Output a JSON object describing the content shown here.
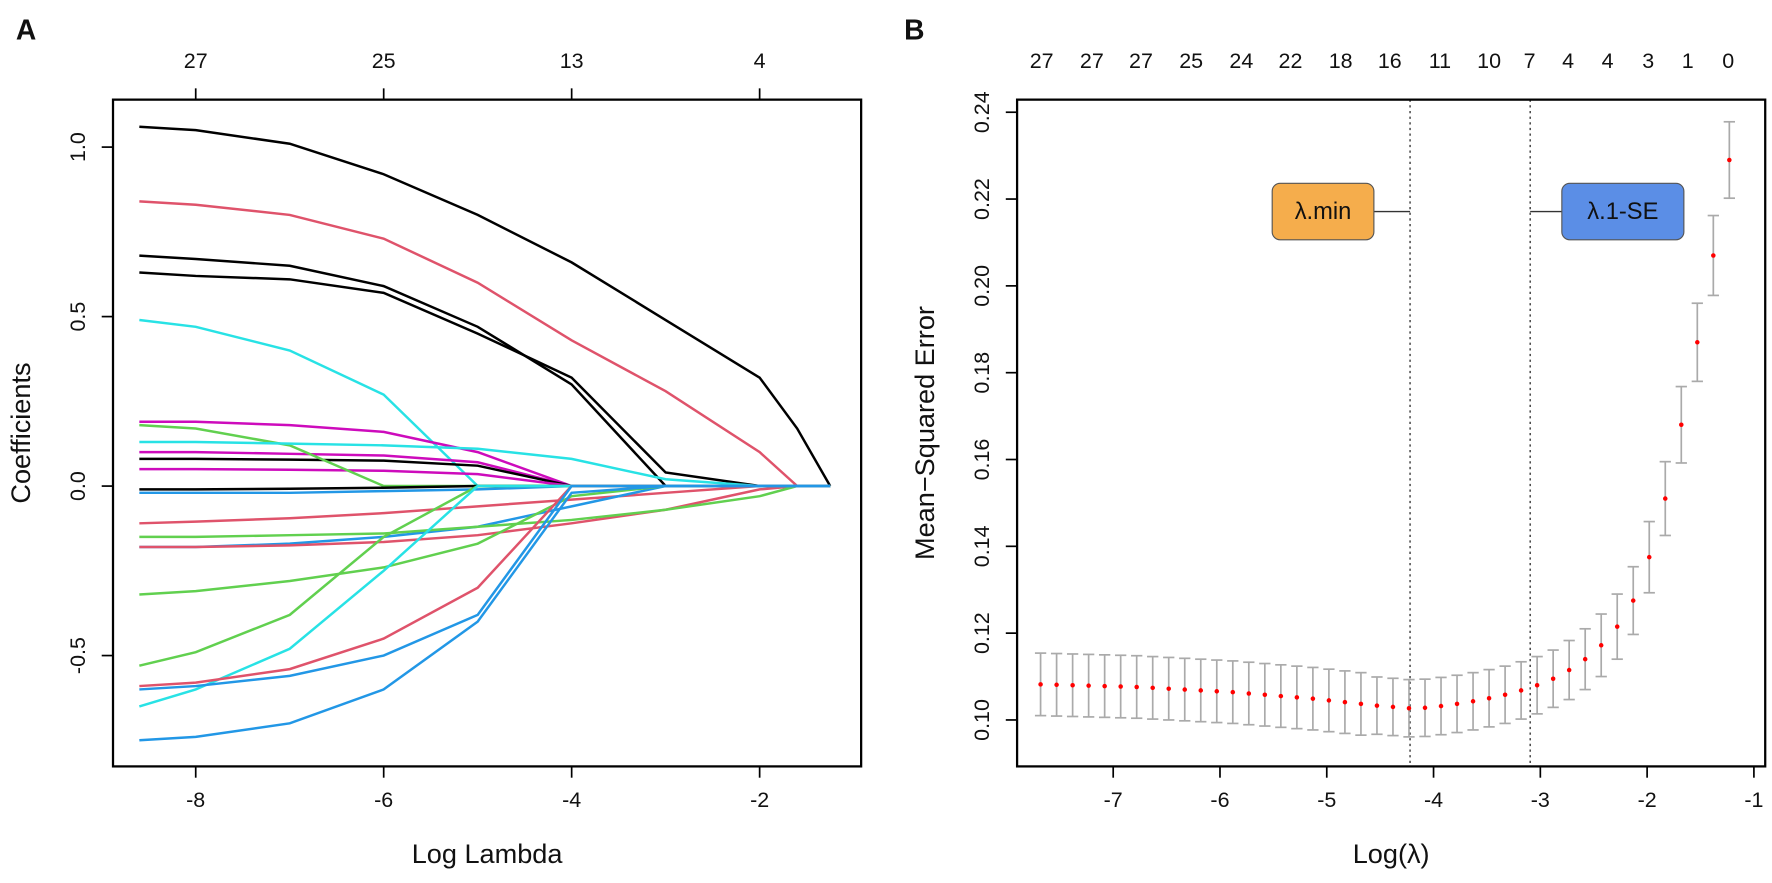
{
  "chart_data": [
    {
      "type": "line",
      "panel_label": "A",
      "xlabel": "Log Lambda",
      "ylabel": "Coefficients",
      "xlim": [
        -8.88,
        -0.92
      ],
      "ylim": [
        -0.827,
        1.14
      ],
      "xticks": [
        -8,
        -6,
        -4,
        -2
      ],
      "yticks": [
        -0.5,
        {
          "value": 0,
          "label": "0.0"
        },
        0.5,
        {
          "value": 1,
          "label": "1.0"
        }
      ],
      "top_xticks": [
        {
          "value": -8,
          "label": "27"
        },
        {
          "value": -6,
          "label": "25"
        },
        {
          "value": -4,
          "label": "13"
        },
        {
          "value": -2,
          "label": "4"
        }
      ],
      "x": [
        -8.6,
        -8,
        -7,
        -6,
        -5,
        -4,
        -3,
        -2,
        -1.6,
        -1.25
      ],
      "series": [
        {
          "color": "#000000",
          "values": [
            1.06,
            1.05,
            1.01,
            0.92,
            0.8,
            0.66,
            0.49,
            0.32,
            0.17,
            0
          ]
        },
        {
          "color": "#DF536B",
          "values": [
            0.84,
            0.83,
            0.8,
            0.73,
            0.6,
            0.43,
            0.28,
            0.1,
            0,
            0
          ]
        },
        {
          "color": "#000000",
          "values": [
            0.68,
            0.67,
            0.65,
            0.59,
            0.47,
            0.3,
            0,
            0,
            0,
            0
          ]
        },
        {
          "color": "#000000",
          "values": [
            0.63,
            0.62,
            0.61,
            0.57,
            0.45,
            0.32,
            0.04,
            0,
            0,
            0
          ]
        },
        {
          "color": "#28E2E5",
          "values": [
            0.49,
            0.47,
            0.4,
            0.27,
            0,
            0,
            0,
            0,
            0,
            0
          ]
        },
        {
          "color": "#CD0BBC",
          "values": [
            0.19,
            0.19,
            0.18,
            0.16,
            0.1,
            0,
            0,
            0,
            0,
            0
          ]
        },
        {
          "color": "#CD0BBC",
          "values": [
            0.1,
            0.1,
            0.095,
            0.09,
            0.07,
            0,
            0,
            0,
            0,
            0
          ]
        },
        {
          "color": "#000000",
          "values": [
            0.08,
            0.08,
            0.078,
            0.075,
            0.06,
            0,
            0,
            0,
            0,
            0
          ]
        },
        {
          "color": "#CD0BBC",
          "values": [
            0.05,
            0.05,
            0.048,
            0.045,
            0.035,
            0,
            0,
            0,
            0,
            0
          ]
        },
        {
          "color": "#61D04F",
          "values": [
            0.18,
            0.17,
            0.12,
            0,
            0,
            0,
            0,
            0,
            0,
            0
          ]
        },
        {
          "color": "#28E2E5",
          "values": [
            0.13,
            0.13,
            0.125,
            0.12,
            0.11,
            0.08,
            0.02,
            0,
            0,
            0
          ]
        },
        {
          "color": "#000000",
          "values": [
            -0.01,
            -0.01,
            -0.008,
            -0.005,
            0,
            0,
            0,
            0,
            0,
            0
          ]
        },
        {
          "color": "#2297E6",
          "values": [
            -0.02,
            -0.02,
            -0.02,
            -0.015,
            -0.01,
            0,
            0,
            0,
            0,
            0
          ]
        },
        {
          "color": "#DF536B",
          "values": [
            -0.11,
            -0.105,
            -0.095,
            -0.08,
            -0.06,
            -0.04,
            -0.02,
            0,
            0,
            0
          ]
        },
        {
          "color": "#2297E6",
          "values": [
            -0.18,
            -0.18,
            -0.17,
            -0.15,
            -0.12,
            -0.06,
            0,
            0,
            0,
            0
          ]
        },
        {
          "color": "#DF536B",
          "values": [
            -0.18,
            -0.18,
            -0.175,
            -0.165,
            -0.145,
            -0.11,
            -0.07,
            -0.01,
            0,
            0
          ]
        },
        {
          "color": "#61D04F",
          "values": [
            -0.15,
            -0.15,
            -0.145,
            -0.14,
            -0.12,
            -0.1,
            -0.07,
            -0.03,
            0,
            0
          ]
        },
        {
          "color": "#61D04F",
          "values": [
            -0.32,
            -0.31,
            -0.28,
            -0.24,
            -0.17,
            -0.03,
            0,
            0,
            0,
            0
          ]
        },
        {
          "color": "#61D04F",
          "values": [
            -0.53,
            -0.49,
            -0.38,
            -0.15,
            0,
            0,
            0,
            0,
            0,
            0
          ]
        },
        {
          "color": "#28E2E5",
          "values": [
            -0.65,
            -0.6,
            -0.48,
            -0.25,
            0,
            0,
            0,
            0,
            0,
            0
          ]
        },
        {
          "color": "#DF536B",
          "values": [
            -0.59,
            -0.58,
            -0.54,
            -0.45,
            -0.3,
            0,
            0,
            0,
            0,
            0
          ]
        },
        {
          "color": "#2297E6",
          "values": [
            -0.6,
            -0.59,
            -0.56,
            -0.5,
            -0.38,
            0,
            0,
            0,
            0,
            0
          ]
        },
        {
          "color": "#2297E6",
          "values": [
            -0.75,
            -0.74,
            -0.7,
            -0.6,
            -0.4,
            -0.02,
            0,
            0,
            0,
            0
          ]
        }
      ]
    },
    {
      "type": "errorbar",
      "panel_label": "B",
      "xlabel": "Log(λ)",
      "ylabel": "Mean−Squared Error",
      "xlim": [
        -7.9,
        -0.894
      ],
      "ylim": [
        0.0893,
        0.2429
      ],
      "xticks": [
        -7,
        -6,
        -5,
        -4,
        -3,
        -2,
        -1
      ],
      "yticks": [
        {
          "value": 0.1,
          "label": "0.10"
        },
        0.12,
        0.14,
        0.16,
        0.18,
        {
          "value": 0.2,
          "label": "0.20"
        },
        0.22,
        0.24
      ],
      "top_xticks": [
        {
          "value": -7.67,
          "label": "27"
        },
        {
          "value": -7.2,
          "label": "27"
        },
        {
          "value": -6.74,
          "label": "27"
        },
        {
          "value": -6.27,
          "label": "25"
        },
        {
          "value": -5.8,
          "label": "24"
        },
        {
          "value": -5.34,
          "label": "22"
        },
        {
          "value": -4.87,
          "label": "18"
        },
        {
          "value": -4.41,
          "label": "16"
        },
        {
          "value": -3.94,
          "label": "11"
        },
        {
          "value": -3.48,
          "label": "10"
        },
        {
          "value": -3.1,
          "label": "7"
        },
        {
          "value": -2.74,
          "label": "4"
        },
        {
          "value": -2.37,
          "label": "4"
        },
        {
          "value": -1.99,
          "label": "3"
        },
        {
          "value": -1.62,
          "label": "1"
        },
        {
          "value": -1.24,
          "label": "0"
        }
      ],
      "color": "#ff0000",
      "error_color": "#aaaaaa",
      "x": [
        -7.68,
        -7.53,
        -7.38,
        -7.23,
        -7.08,
        -6.93,
        -6.78,
        -6.63,
        -6.48,
        -6.33,
        -6.18,
        -6.03,
        -5.88,
        -5.73,
        -5.58,
        -5.43,
        -5.28,
        -5.13,
        -4.98,
        -4.83,
        -4.68,
        -4.53,
        -4.38,
        -4.23,
        -4.08,
        -3.93,
        -3.78,
        -3.63,
        -3.48,
        -3.33,
        -3.18,
        -3.03,
        -2.88,
        -2.73,
        -2.58,
        -2.43,
        -2.28,
        -2.13,
        -1.98,
        -1.83,
        -1.68,
        -1.53,
        -1.38,
        -1.23
      ],
      "values": [
        0.1082,
        0.1081,
        0.108,
        0.1079,
        0.1078,
        0.1077,
        0.1076,
        0.1074,
        0.1072,
        0.107,
        0.1068,
        0.1066,
        0.1064,
        0.1061,
        0.1058,
        0.1055,
        0.1052,
        0.1049,
        0.1045,
        0.1041,
        0.1037,
        0.1033,
        0.103,
        0.1027,
        0.1028,
        0.1032,
        0.1037,
        0.1043,
        0.105,
        0.1058,
        0.1068,
        0.108,
        0.1095,
        0.1115,
        0.114,
        0.1172,
        0.1215,
        0.1275,
        0.1375,
        0.151,
        0.168,
        0.187,
        0.207,
        0.229
      ],
      "errors": [
        0.0072,
        0.0072,
        0.0072,
        0.0072,
        0.0072,
        0.0072,
        0.0072,
        0.0072,
        0.0072,
        0.0072,
        0.0072,
        0.0072,
        0.0072,
        0.0072,
        0.0072,
        0.0072,
        0.0072,
        0.0072,
        0.0072,
        0.0072,
        0.0072,
        0.0066,
        0.0066,
        0.0066,
        0.0066,
        0.0066,
        0.0066,
        0.0066,
        0.0066,
        0.0066,
        0.0066,
        0.0066,
        0.0066,
        0.0068,
        0.007,
        0.0072,
        0.0075,
        0.0078,
        0.0082,
        0.0085,
        0.0088,
        0.009,
        0.0092,
        0.0088
      ],
      "vlines": [
        {
          "value": -4.22,
          "label": "λ.min",
          "color": "#F5AD4C"
        },
        {
          "value": -3.095,
          "label": "λ.1-SE",
          "color": "#5B8EE6"
        }
      ]
    }
  ]
}
